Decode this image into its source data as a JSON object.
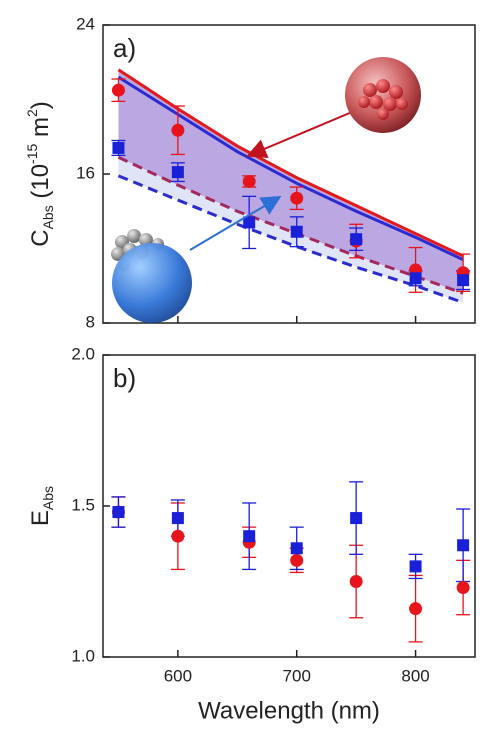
{
  "chart_data": [
    {
      "type": "scatter",
      "panel_label": "a)",
      "ylabel_parts": [
        {
          "text": "C"
        },
        {
          "text": "Abs",
          "script": "sub"
        },
        {
          "text": " (10"
        },
        {
          "text": "-15",
          "script": "sup"
        },
        {
          "text": " m"
        },
        {
          "text": "2",
          "script": "sup"
        },
        {
          "text": ")"
        }
      ],
      "xlim": [
        537,
        850
      ],
      "ylim": [
        8,
        24
      ],
      "xticks": [
        600,
        700,
        800
      ],
      "xtick_labels": false,
      "yticks": [
        8,
        16,
        24
      ],
      "x": [
        550,
        600,
        660,
        700,
        750,
        800,
        840
      ],
      "series": [
        {
          "color": "#e8141c",
          "marker": "circle",
          "values": [
            20.5,
            18.35,
            15.6,
            14.7,
            12.4,
            10.85,
            10.7
          ],
          "errors": [
            0.6,
            1.3,
            0.3,
            0.6,
            0.9,
            1.2,
            1.0
          ]
        },
        {
          "color": "#1a1fd8",
          "marker": "square",
          "values": [
            17.4,
            16.1,
            13.4,
            12.9,
            12.5,
            10.4,
            10.3
          ],
          "errors": [
            0.4,
            0.5,
            1.4,
            0.8,
            0.6,
            0.4,
            0.5
          ]
        }
      ],
      "curve_x": [
        550,
        600,
        650,
        700,
        750,
        800,
        840
      ],
      "curves": [
        {
          "color": "#e31a1c",
          "dash": false,
          "values": [
            21.6,
            19.5,
            17.5,
            15.8,
            14.3,
            12.8,
            11.6
          ]
        },
        {
          "color": "#2b2bd0",
          "dash": false,
          "values": [
            21.2,
            19.2,
            17.2,
            15.5,
            14.0,
            12.6,
            11.4
          ]
        },
        {
          "color": "#a3285e",
          "dash": true,
          "values": [
            16.9,
            15.4,
            14.0,
            12.8,
            11.6,
            10.5,
            9.6
          ]
        },
        {
          "color": "#2b2bd0",
          "dash": true,
          "values": [
            15.9,
            14.6,
            13.3,
            12.1,
            11.0,
            10.0,
            9.1
          ]
        }
      ],
      "bands": [
        {
          "from": 0,
          "to": 2,
          "color": "#bba8e2"
        },
        {
          "from": 2,
          "to": 3,
          "color": "#dfe4f6"
        }
      ]
    },
    {
      "type": "scatter",
      "panel_label": "b)",
      "ylabel_parts": [
        {
          "text": "E"
        },
        {
          "text": "Abs",
          "script": "sub"
        }
      ],
      "xlabel": "Wavelength (nm)",
      "xlim": [
        537,
        850
      ],
      "ylim": [
        1,
        2
      ],
      "xticks": [
        600,
        700,
        800
      ],
      "xtick_labels": true,
      "yticks": [
        {
          "value": 1,
          "label": "1.0"
        },
        {
          "value": 1.5,
          "label": "1.5"
        },
        {
          "value": 2,
          "label": "2.0"
        }
      ],
      "x": [
        550,
        600,
        660,
        700,
        750,
        800,
        840
      ],
      "series": [
        {
          "color": "#e8141c",
          "marker": "circle",
          "values": [
            1.48,
            1.4,
            1.38,
            1.32,
            1.25,
            1.16,
            1.23
          ],
          "errors": [
            0.05,
            0.11,
            0.05,
            0.04,
            0.12,
            0.11,
            0.09
          ]
        },
        {
          "color": "#1a1fd8",
          "marker": "square",
          "values": [
            1.48,
            1.46,
            1.4,
            1.36,
            1.46,
            1.3,
            1.37
          ],
          "errors": [
            0.05,
            0.06,
            0.11,
            0.07,
            0.12,
            0.04,
            0.12
          ]
        }
      ]
    }
  ]
}
